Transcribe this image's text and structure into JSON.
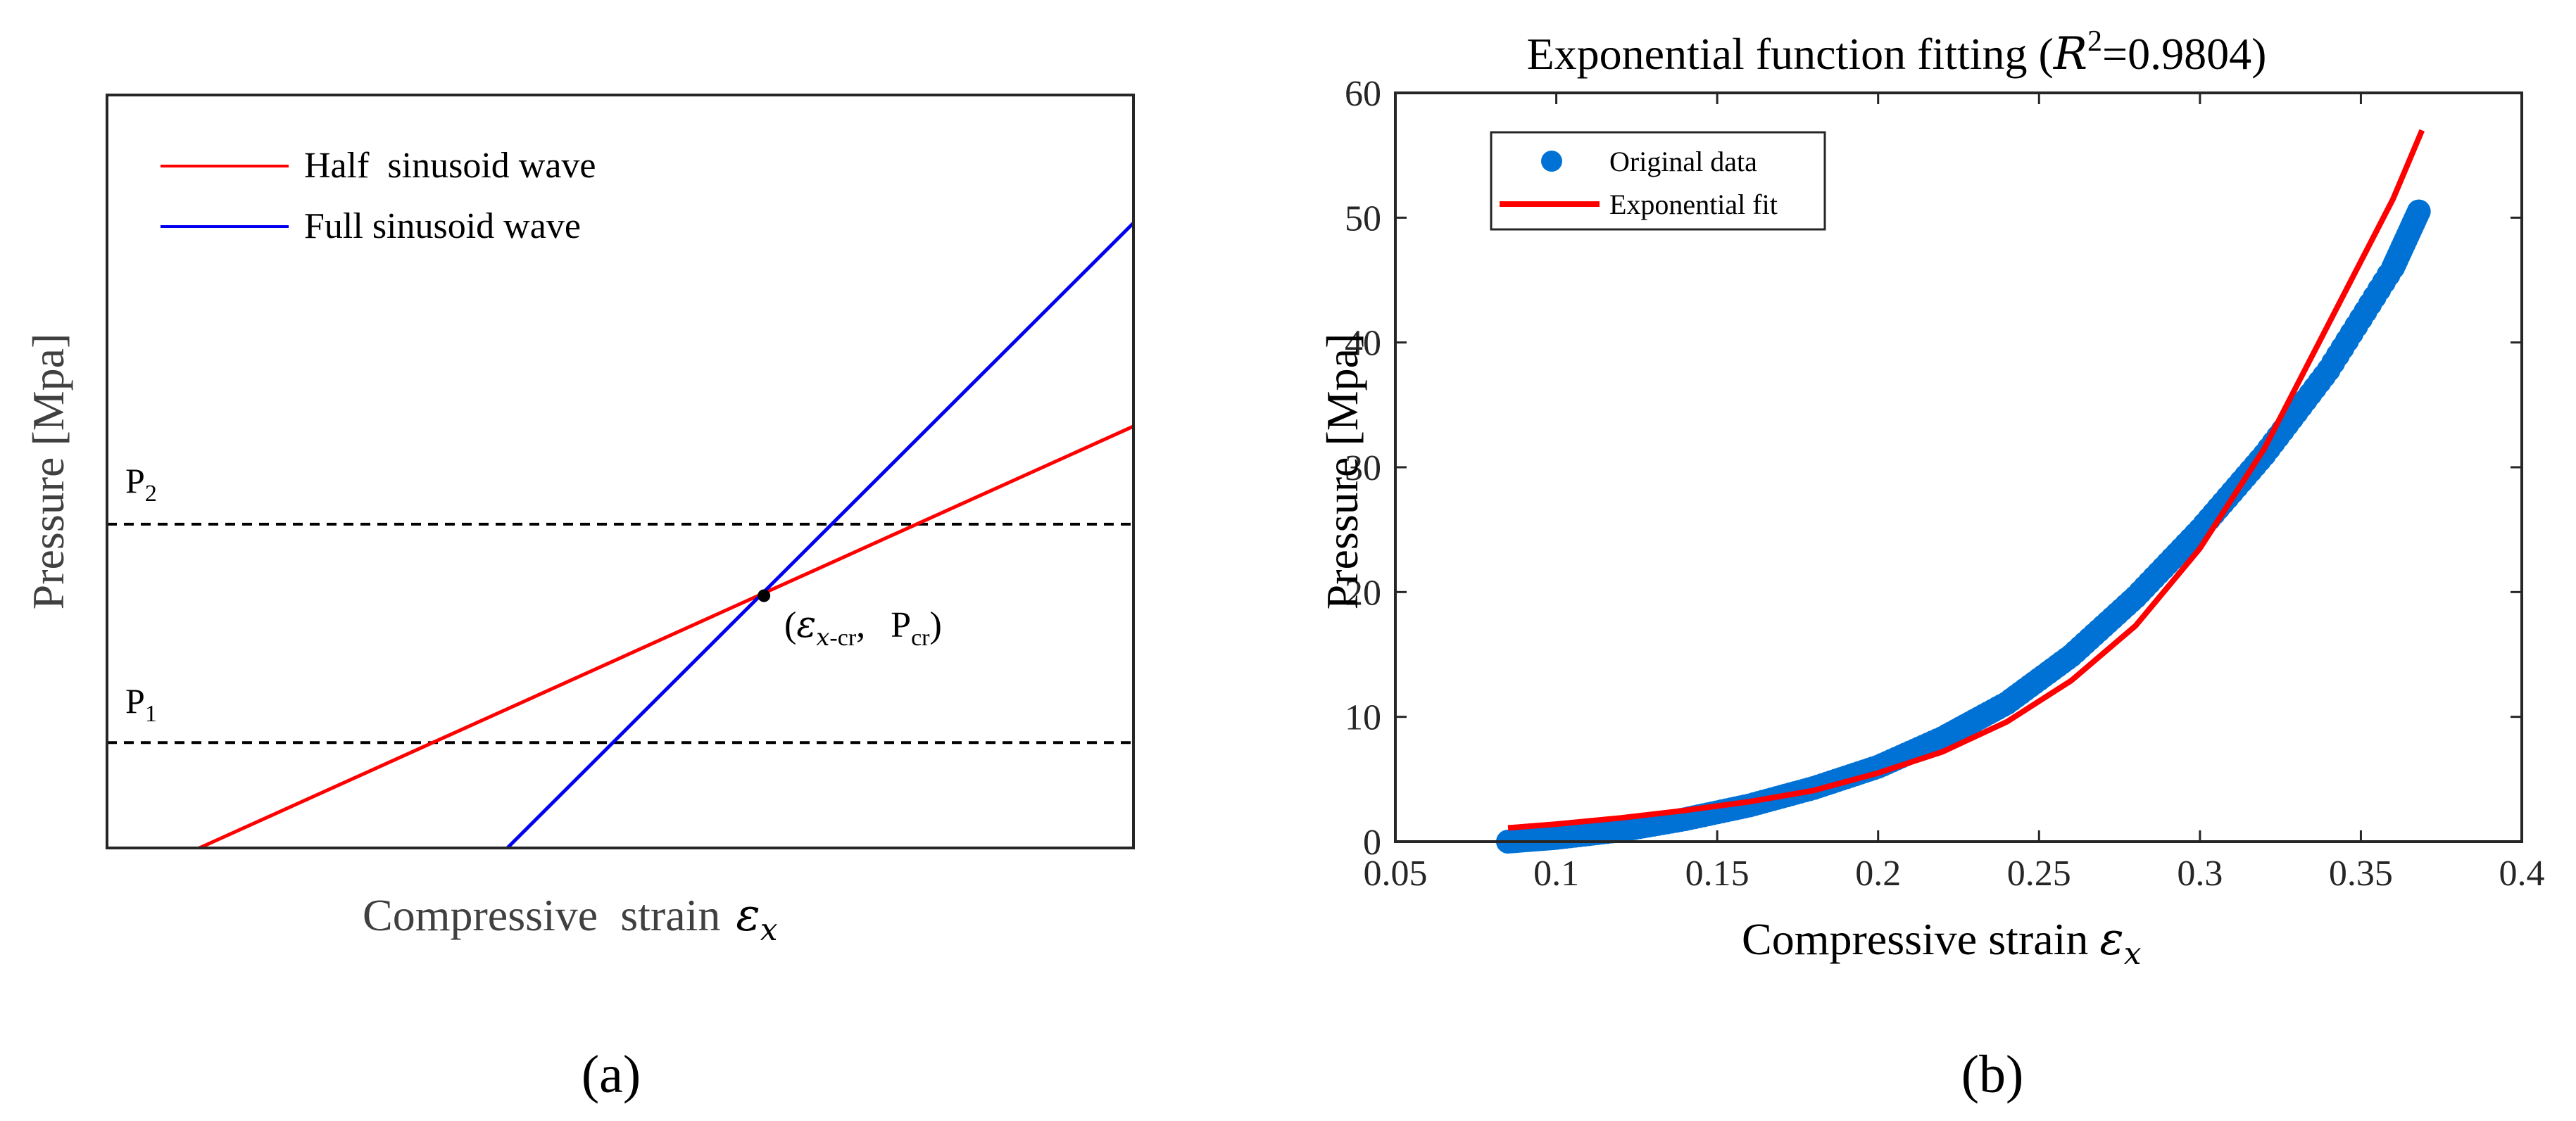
{
  "colors": {
    "red": "#ff0000",
    "blue": "#0000ee",
    "scatter_blue": "#0072d6",
    "axis": "#262626",
    "text_gray": "#404040",
    "black": "#000000"
  },
  "panel_a": {
    "caption": "(a)",
    "xlabel_text": "Compressive  strain",
    "xlabel_symbol": "ε",
    "xlabel_sub": "x",
    "ylabel": "Pressure [Mpa]",
    "legend": [
      {
        "name": "Half  sinusoid wave",
        "color": "#ff0000"
      },
      {
        "name": "Full sinusoid wave",
        "color": "#0000ee"
      }
    ],
    "p2_label": "P",
    "p2_sub": "2",
    "p1_label": "P",
    "p1_sub": "1",
    "crit_open": "(",
    "crit_eps": "ε",
    "crit_eps_sub": "x",
    "crit_eps_sub2": "-cr",
    "crit_sep": ",",
    "crit_p": "P",
    "crit_p_sub": "cr",
    "crit_close": ")"
  },
  "chart_data": [
    {
      "type": "line",
      "title": "",
      "xlabel": "Compressive  strain εx",
      "ylabel": "Pressure [Mpa]",
      "xlim": [
        0,
        1
      ],
      "ylim": [
        0,
        1
      ],
      "series": [
        {
          "name": "Half  sinusoid wave",
          "x": [
            0.09,
            1.0
          ],
          "y": [
            0.0,
            0.56
          ]
        },
        {
          "name": "Full sinusoid wave",
          "x": [
            0.39,
            1.0
          ],
          "y": [
            0.0,
            0.83
          ]
        }
      ],
      "reference_lines": [
        {
          "label": "P2",
          "y": 0.43
        },
        {
          "label": "P1",
          "y": 0.14
        }
      ],
      "critical_point": {
        "label": "(εx-cr, Pcr)",
        "x": 0.64,
        "y": 0.335
      }
    },
    {
      "type": "scatter",
      "title_text": "Exponential function fitting (",
      "title_r": "R",
      "title_sup": "2",
      "title_rest": "=0.9804)",
      "caption": "(b)",
      "xlabel_text": "Compressive strain ",
      "xlabel_symbol": "ε",
      "xlabel_sub": "x",
      "ylabel": "Pressure [Mpa]",
      "xlim": [
        0.05,
        0.4
      ],
      "ylim": [
        0,
        60
      ],
      "xticks": [
        0.05,
        0.1,
        0.15,
        0.2,
        0.25,
        0.3,
        0.35,
        0.4
      ],
      "xtick_labels": [
        "0.05",
        "0.1",
        "0.15",
        "0.2",
        "0.25",
        "0.3",
        "0.35",
        "0.4"
      ],
      "yticks": [
        0,
        10,
        20,
        30,
        40,
        50,
        60
      ],
      "ytick_labels": [
        "0",
        "10",
        "20",
        "30",
        "40",
        "50",
        "60"
      ],
      "legend": [
        {
          "name": "Original data",
          "kind": "marker",
          "color": "#0072d6"
        },
        {
          "name": "Exponential fit",
          "kind": "line",
          "color": "#ff0000"
        }
      ],
      "series": [
        {
          "name": "Original data",
          "x": [
            0.085,
            0.1,
            0.12,
            0.14,
            0.16,
            0.18,
            0.2,
            0.22,
            0.24,
            0.26,
            0.28,
            0.3,
            0.32,
            0.34,
            0.36,
            0.368
          ],
          "y": [
            0.0,
            0.3,
            0.9,
            1.8,
            2.9,
            4.3,
            6.0,
            8.3,
            11.1,
            14.9,
            19.6,
            25.0,
            31.0,
            37.8,
            46.0,
            50.5
          ]
        },
        {
          "name": "Exponential fit",
          "x": [
            0.085,
            0.1,
            0.12,
            0.14,
            0.16,
            0.18,
            0.2,
            0.22,
            0.24,
            0.26,
            0.28,
            0.3,
            0.32,
            0.34,
            0.36,
            0.369
          ],
          "y": [
            1.1,
            1.4,
            1.9,
            2.5,
            3.2,
            4.1,
            5.5,
            7.2,
            9.6,
            12.9,
            17.3,
            23.5,
            31.5,
            41.5,
            51.5,
            57.0
          ]
        }
      ]
    }
  ]
}
